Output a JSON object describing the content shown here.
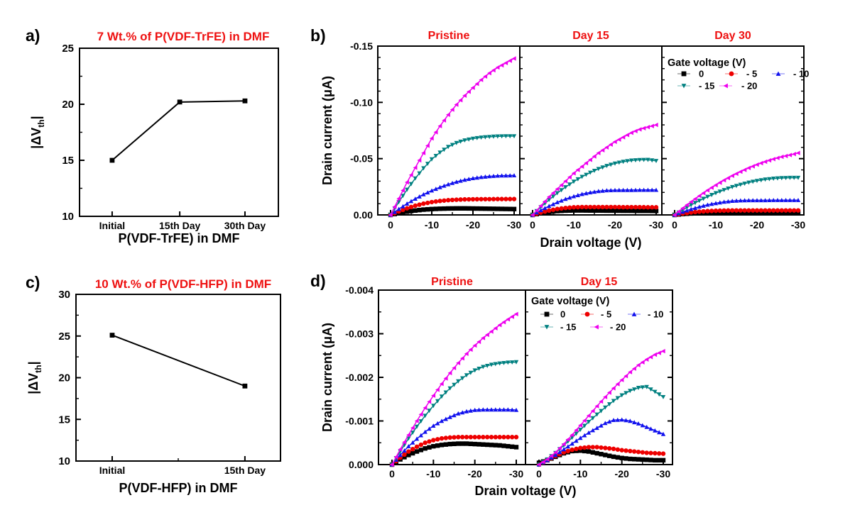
{
  "figure": {
    "background": "#ffffff",
    "accent_red": "#ee1111",
    "axis_color": "#000000"
  },
  "chart_data": [
    {
      "id": "a",
      "type": "line",
      "corner_label": "a)",
      "title": "7 Wt.% of P(VDF-TrFE) in DMF",
      "xlabel": "P(VDF-TrFE) in DMF",
      "ylabel": {
        "pre": "|ΔV",
        "sub": "th",
        "post": "|"
      },
      "categories": [
        "Initial",
        "15th Day",
        "30th Day"
      ],
      "values": [
        15.0,
        20.2,
        20.3
      ],
      "ylim": [
        10,
        25
      ],
      "yticks": [
        10,
        15,
        20,
        25
      ],
      "ytick_labels": [
        "10",
        "15",
        "20",
        "25"
      ],
      "series_color": "#000000",
      "marker": "square"
    },
    {
      "id": "b",
      "type": "line",
      "corner_label": "b)",
      "xlabel": "Drain voltage (V)",
      "ylabel": "Drain current (μA)",
      "ymax_abs": 0.15,
      "y_major_step": 0.05,
      "y_minor_step": 0.01,
      "yticks": [
        {
          "v": 0,
          "label": "0.00"
        },
        {
          "v": 0.05,
          "label": "-0.05"
        },
        {
          "v": 0.1,
          "label": "-0.10"
        },
        {
          "v": 0.15,
          "label": "-0.15"
        }
      ],
      "xticks": [
        {
          "v": 0,
          "label": "0"
        },
        {
          "v": -10,
          "label": "-10"
        },
        {
          "v": -20,
          "label": "-20"
        },
        {
          "v": -30,
          "label": "-30"
        }
      ],
      "x_minor_step": 5,
      "x_values": [
        0,
        -2,
        -4,
        -6,
        -8,
        -10,
        -12,
        -14,
        -16,
        -18,
        -20,
        -22,
        -24,
        -26,
        -28,
        -30
      ],
      "legend": {
        "title": "Gate voltage (V)",
        "entries": [
          {
            "label": "0",
            "marker": "square",
            "color": "#000000"
          },
          {
            "label": "- 5",
            "marker": "circle",
            "color": "#ee0000"
          },
          {
            "label": "- 10",
            "marker": "triangle-up",
            "color": "#1111ee"
          },
          {
            "label": "- 15",
            "marker": "triangle-down",
            "color": "#008080"
          },
          {
            "label": "- 20",
            "marker": "triangle-left",
            "color": "#ee00ee"
          }
        ]
      },
      "subplots": [
        {
          "title": "Pristine",
          "series": [
            {
              "gate": "0",
              "marker": "square",
              "color": "#000000",
              "abs_current": [
                0,
                0.0016,
                0.0029,
                0.0039,
                0.0047,
                0.0052,
                0.0055,
                0.0057,
                0.0058,
                0.0058,
                0.0057,
                0.0056,
                0.0055,
                0.0054,
                0.0053,
                0.0052
              ]
            },
            {
              "gate": "- 5",
              "marker": "circle",
              "color": "#ee0000",
              "abs_current": [
                0,
                0.0031,
                0.0059,
                0.0082,
                0.01,
                0.0114,
                0.0124,
                0.0131,
                0.0135,
                0.0138,
                0.0139,
                0.014,
                0.014,
                0.0141,
                0.0141,
                0.0141
              ]
            },
            {
              "gate": "- 10",
              "marker": "triangle-up",
              "color": "#1111ee",
              "abs_current": [
                0,
                0.0052,
                0.01,
                0.0143,
                0.0182,
                0.0216,
                0.0246,
                0.0272,
                0.0294,
                0.0312,
                0.0326,
                0.0336,
                0.0343,
                0.0348,
                0.035,
                0.0351
              ]
            },
            {
              "gate": "- 15",
              "marker": "triangle-down",
              "color": "#008080",
              "abs_current": [
                0,
                0.0115,
                0.0225,
                0.0325,
                0.0415,
                0.0495,
                0.0555,
                0.0605,
                0.064,
                0.0663,
                0.0678,
                0.0688,
                0.0694,
                0.0698,
                0.07,
                0.07
              ]
            },
            {
              "gate": "- 20",
              "marker": "triangle-left",
              "color": "#ee00ee",
              "abs_current": [
                0,
                0.0145,
                0.029,
                0.042,
                0.055,
                0.068,
                0.079,
                0.089,
                0.098,
                0.106,
                0.113,
                0.12,
                0.126,
                0.131,
                0.135,
                0.139
              ]
            }
          ]
        },
        {
          "title": "Day 15",
          "series": [
            {
              "gate": "0",
              "marker": "square",
              "color": "#000000",
              "abs_current": [
                0,
                0.0015,
                0.0026,
                0.0034,
                0.0038,
                0.004,
                0.004,
                0.0039,
                0.0039,
                0.0038,
                0.0038,
                0.0037,
                0.0037,
                0.0036,
                0.0036,
                0.0035
              ]
            },
            {
              "gate": "- 5",
              "marker": "circle",
              "color": "#ee0000",
              "abs_current": [
                0,
                0.0021,
                0.0039,
                0.0053,
                0.0062,
                0.0068,
                0.007,
                0.007,
                0.007,
                0.007,
                0.007,
                0.0069,
                0.0069,
                0.0069,
                0.0068,
                0.0068
              ]
            },
            {
              "gate": "- 10",
              "marker": "triangle-up",
              "color": "#1111ee",
              "abs_current": [
                0,
                0.0042,
                0.0079,
                0.0112,
                0.0141,
                0.0165,
                0.0185,
                0.02,
                0.0211,
                0.0218,
                0.022,
                0.0221,
                0.0221,
                0.0222,
                0.0222,
                0.0222
              ]
            },
            {
              "gate": "- 15",
              "marker": "triangle-down",
              "color": "#008080",
              "abs_current": [
                0,
                0.007,
                0.0134,
                0.0194,
                0.0247,
                0.0296,
                0.0339,
                0.0376,
                0.0409,
                0.0436,
                0.0457,
                0.0473,
                0.0484,
                0.0489,
                0.049,
                0.048
              ]
            },
            {
              "gate": "- 20",
              "marker": "triangle-left",
              "color": "#ee00ee",
              "abs_current": [
                0,
                0.008,
                0.016,
                0.023,
                0.03,
                0.037,
                0.043,
                0.049,
                0.055,
                0.06,
                0.065,
                0.069,
                0.073,
                0.076,
                0.078,
                0.08
              ]
            }
          ]
        },
        {
          "title": "Day 30",
          "series": [
            {
              "gate": "0",
              "marker": "square",
              "color": "#000000",
              "abs_current": [
                0,
                0.0008,
                0.0013,
                0.0017,
                0.0019,
                0.002,
                0.002,
                0.002,
                0.002,
                0.002,
                0.002,
                0.002,
                0.002,
                0.002,
                0.002,
                0.002
              ]
            },
            {
              "gate": "- 5",
              "marker": "circle",
              "color": "#ee0000",
              "abs_current": [
                0,
                0.0012,
                0.0022,
                0.0029,
                0.0034,
                0.0037,
                0.0039,
                0.004,
                0.004,
                0.004,
                0.004,
                0.004,
                0.004,
                0.004,
                0.004,
                0.004
              ]
            },
            {
              "gate": "- 10",
              "marker": "triangle-up",
              "color": "#1111ee",
              "abs_current": [
                0,
                0.0027,
                0.0051,
                0.0072,
                0.009,
                0.0104,
                0.0116,
                0.0124,
                0.0128,
                0.013,
                0.013,
                0.013,
                0.0131,
                0.0131,
                0.0131,
                0.0131
              ]
            },
            {
              "gate": "- 15",
              "marker": "triangle-down",
              "color": "#008080",
              "abs_current": [
                0,
                0.0045,
                0.0088,
                0.0126,
                0.0162,
                0.0194,
                0.0222,
                0.0248,
                0.0269,
                0.0288,
                0.0303,
                0.0315,
                0.0323,
                0.0328,
                0.033,
                0.033
              ]
            },
            {
              "gate": "- 20",
              "marker": "triangle-left",
              "color": "#ee00ee",
              "abs_current": [
                0,
                0.006,
                0.0116,
                0.0169,
                0.0219,
                0.0265,
                0.0308,
                0.0348,
                0.0384,
                0.0417,
                0.0447,
                0.0473,
                0.0496,
                0.0516,
                0.0532,
                0.055
              ]
            }
          ]
        }
      ]
    },
    {
      "id": "c",
      "type": "line",
      "corner_label": "c)",
      "title": "10 Wt.% of P(VDF-HFP) in DMF",
      "xlabel": "P(VDF-HFP) in DMF",
      "ylabel": {
        "pre": "|ΔV",
        "sub": "th",
        "post": "|"
      },
      "categories": [
        "Initial",
        "15th Day"
      ],
      "values": [
        25.1,
        19.0
      ],
      "ylim": [
        10,
        30
      ],
      "yticks": [
        10,
        15,
        20,
        25,
        30
      ],
      "ytick_labels": [
        "10",
        "15",
        "20",
        "25",
        "30"
      ],
      "series_color": "#000000",
      "marker": "square"
    },
    {
      "id": "d",
      "type": "line",
      "corner_label": "d)",
      "xlabel": "Drain voltage (V)",
      "ylabel": "Drain current (μA)",
      "ymax_abs": 0.004,
      "y_major_step": 0.001,
      "y_minor_step": 0.0005,
      "yticks": [
        {
          "v": 0,
          "label": "0.000"
        },
        {
          "v": 0.001,
          "label": "-0.001"
        },
        {
          "v": 0.002,
          "label": "-0.002"
        },
        {
          "v": 0.003,
          "label": "-0.003"
        },
        {
          "v": 0.004,
          "label": "-0.004"
        }
      ],
      "xticks": [
        {
          "v": 0,
          "label": "0"
        },
        {
          "v": -10,
          "label": "-10"
        },
        {
          "v": -20,
          "label": "-20"
        },
        {
          "v": -30,
          "label": "-30"
        }
      ],
      "x_minor_step": 5,
      "x_values": [
        0,
        -2,
        -4,
        -6,
        -8,
        -10,
        -12,
        -14,
        -16,
        -18,
        -20,
        -22,
        -24,
        -26,
        -28,
        -30
      ],
      "legend": {
        "title": "Gate voltage (V)",
        "entries": [
          {
            "label": "0",
            "marker": "square",
            "color": "#000000"
          },
          {
            "label": "- 5",
            "marker": "circle",
            "color": "#ee0000"
          },
          {
            "label": "- 10",
            "marker": "triangle-up",
            "color": "#1111ee"
          },
          {
            "label": "- 15",
            "marker": "triangle-down",
            "color": "#008080"
          },
          {
            "label": "- 20",
            "marker": "triangle-left",
            "color": "#ee00ee"
          }
        ]
      },
      "subplots": [
        {
          "title": "Pristine",
          "series": [
            {
              "gate": "0",
              "marker": "square",
              "color": "#000000",
              "abs_current": [
                0,
                0.00012,
                0.00022,
                0.0003,
                0.00037,
                0.00042,
                0.00045,
                0.00047,
                0.00048,
                0.00048,
                0.00047,
                0.00046,
                0.00045,
                0.00044,
                0.00042,
                0.0004
              ]
            },
            {
              "gate": "- 5",
              "marker": "circle",
              "color": "#ee0000",
              "abs_current": [
                0,
                0.00016,
                0.0003,
                0.00041,
                0.0005,
                0.00056,
                0.0006,
                0.00062,
                0.00063,
                0.00063,
                0.00063,
                0.00063,
                0.00063,
                0.00063,
                0.00063,
                0.00063
              ]
            },
            {
              "gate": "- 10",
              "marker": "triangle-up",
              "color": "#1111ee",
              "abs_current": [
                0,
                0.00022,
                0.00042,
                0.00059,
                0.00075,
                0.00089,
                0.001,
                0.00109,
                0.00117,
                0.00122,
                0.00125,
                0.00126,
                0.00126,
                0.00126,
                0.00126,
                0.00125
              ]
            },
            {
              "gate": "- 15",
              "marker": "triangle-down",
              "color": "#008080",
              "abs_current": [
                0,
                0.0003,
                0.0006,
                0.00087,
                0.00112,
                0.00135,
                0.00156,
                0.00175,
                0.00191,
                0.00205,
                0.00216,
                0.00224,
                0.00229,
                0.00232,
                0.00234,
                0.00235
              ]
            },
            {
              "gate": "- 20",
              "marker": "triangle-left",
              "color": "#ee00ee",
              "abs_current": [
                0,
                0.00035,
                0.00068,
                0.001,
                0.0013,
                0.00158,
                0.00185,
                0.0021,
                0.00233,
                0.00254,
                0.00273,
                0.0029,
                0.00305,
                0.0032,
                0.00333,
                0.00345
              ]
            }
          ]
        },
        {
          "title": "Day 15",
          "series": [
            {
              "gate": "0",
              "marker": "square",
              "color": "#000000",
              "abs_current": [
                4e-05,
                0.0001,
                0.00018,
                0.00026,
                0.00031,
                0.00032,
                0.0003,
                0.00026,
                0.00022,
                0.00018,
                0.00015,
                0.00013,
                0.00012,
                0.00011,
                0.0001,
                0.0001
              ]
            },
            {
              "gate": "- 5",
              "marker": "circle",
              "color": "#ee0000",
              "abs_current": [
                0,
                0.0001,
                0.0002,
                0.00028,
                0.00034,
                0.00038,
                0.0004,
                0.0004,
                0.00038,
                0.00036,
                0.00033,
                0.00031,
                0.00029,
                0.00027,
                0.00026,
                0.00025
              ]
            },
            {
              "gate": "- 10",
              "marker": "triangle-up",
              "color": "#1111ee",
              "abs_current": [
                0,
                0.0001,
                0.00022,
                0.00035,
                0.00048,
                0.00061,
                0.00073,
                0.00084,
                0.00095,
                0.00102,
                0.00103,
                0.001,
                0.00094,
                0.00086,
                0.00078,
                0.0007
              ]
            },
            {
              "gate": "- 15",
              "marker": "triangle-down",
              "color": "#008080",
              "abs_current": [
                0,
                0.00012,
                0.00027,
                0.00044,
                0.00062,
                0.0008,
                0.00098,
                0.00115,
                0.00131,
                0.00146,
                0.00159,
                0.00169,
                0.00176,
                0.00178,
                0.00167,
                0.00155
              ]
            },
            {
              "gate": "- 20",
              "marker": "triangle-left",
              "color": "#ee00ee",
              "abs_current": [
                0,
                0.00012,
                0.00028,
                0.00047,
                0.00068,
                0.0009,
                0.00112,
                0.00134,
                0.00155,
                0.00175,
                0.00194,
                0.00212,
                0.00228,
                0.00241,
                0.00252,
                0.0026
              ]
            }
          ]
        }
      ]
    }
  ]
}
